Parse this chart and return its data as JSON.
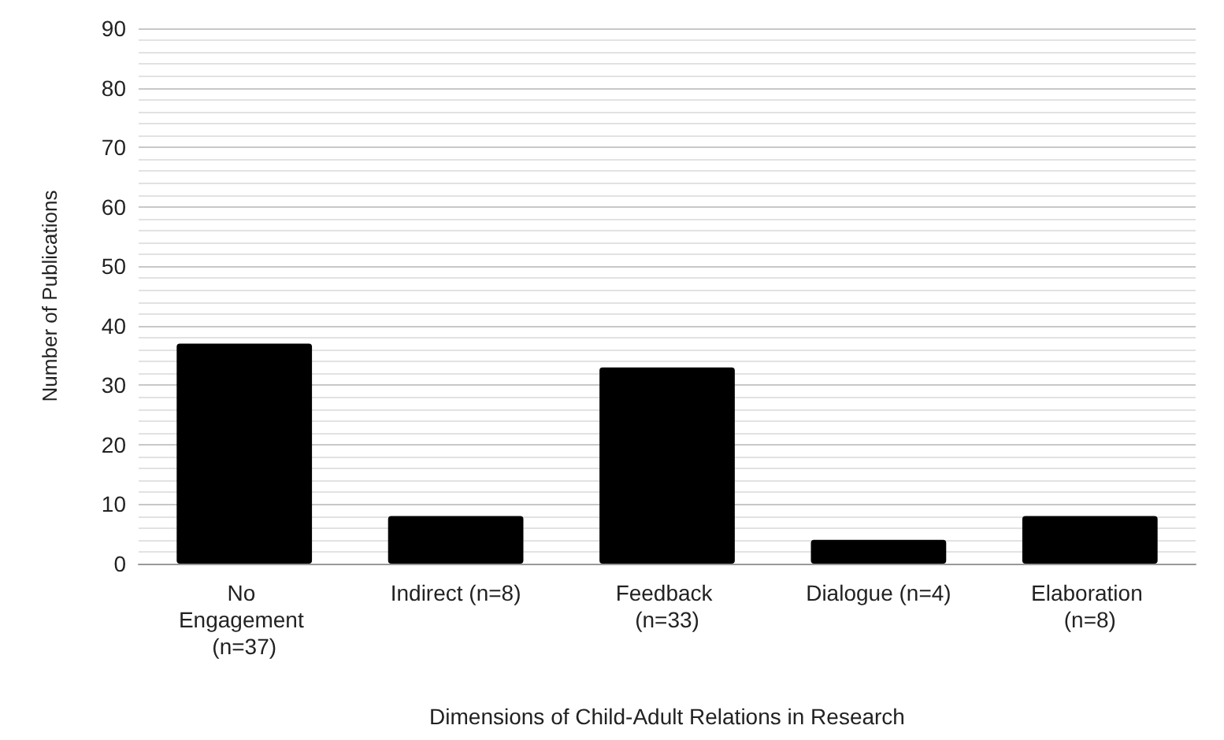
{
  "chart_data": {
    "type": "bar",
    "xlabel": "Dimensions of Child-Adult Relations in Research",
    "ylabel": "Number of Publications",
    "categories": [
      "No Engagement (n=37)",
      "Indirect (n=8)",
      "Feedback (n=33)",
      "Dialogue (n=4)",
      "Elaboration (n=8)"
    ],
    "values": [
      37,
      8,
      33,
      4,
      8
    ],
    "color": "#000000",
    "ylim": [
      0,
      90
    ],
    "yticks": [
      0,
      10,
      20,
      30,
      40,
      50,
      60,
      70,
      80,
      90
    ],
    "grid": "y"
  }
}
